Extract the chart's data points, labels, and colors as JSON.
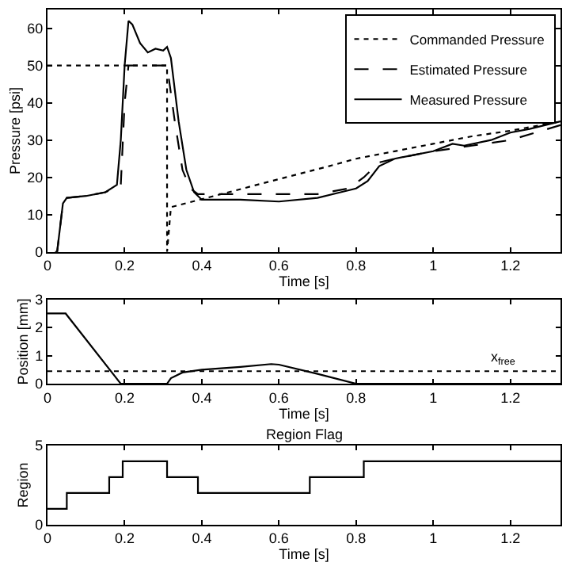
{
  "chart_data": [
    {
      "type": "line",
      "xlabel": "Time [s]",
      "ylabel": "Pressure [psi]",
      "xlim": [
        0,
        1.33
      ],
      "xticks": [
        0,
        0.2,
        0.4,
        0.6,
        0.8,
        1,
        1.2
      ],
      "ylim": [
        0,
        65
      ],
      "yticks": [
        0,
        10,
        20,
        30,
        40,
        50,
        60
      ],
      "grid": false,
      "legend": "top right",
      "marker": "none",
      "series": [
        {
          "name": "Commanded Pressure",
          "color": "#000000",
          "line_style": "dotted",
          "x": [
            0,
            0.31,
            0.31,
            0.32,
            0.73,
            0.8,
            0.9,
            1.0,
            1.1,
            1.2,
            1.33
          ],
          "values": [
            50,
            50,
            0,
            12,
            23,
            25,
            27,
            29,
            31,
            32.5,
            35
          ]
        },
        {
          "name": "Estimated Pressure",
          "color": "#000000",
          "line_style": "dashed",
          "x": [
            0.02,
            0.025,
            0.04,
            0.05,
            0.1,
            0.15,
            0.19,
            0.2,
            0.21,
            0.31,
            0.33,
            0.35,
            0.37,
            0.39,
            0.5,
            0.6,
            0.7,
            0.78,
            0.82,
            0.86,
            0.9,
            1.0,
            1.1,
            1.2,
            1.33
          ],
          "values": [
            0,
            0,
            13,
            14.5,
            15,
            16,
            18,
            40,
            50,
            50,
            35,
            22,
            17,
            15.5,
            15.5,
            15.5,
            15.5,
            17,
            20,
            24,
            25,
            27,
            28.5,
            30,
            34
          ]
        },
        {
          "name": "Measured Pressure",
          "color": "#000000",
          "line_style": "solid",
          "x": [
            0.02,
            0.025,
            0.04,
            0.05,
            0.1,
            0.15,
            0.18,
            0.19,
            0.2,
            0.21,
            0.22,
            0.24,
            0.26,
            0.28,
            0.3,
            0.31,
            0.32,
            0.34,
            0.36,
            0.38,
            0.4,
            0.5,
            0.6,
            0.7,
            0.76,
            0.8,
            0.83,
            0.86,
            0.9,
            1.0,
            1.05,
            1.08,
            1.15,
            1.2,
            1.25,
            1.33
          ],
          "values": [
            0,
            0,
            13,
            14.5,
            15,
            16,
            18,
            30,
            50,
            62,
            61,
            56,
            53.5,
            54.5,
            54,
            55,
            52,
            35,
            22,
            16,
            14,
            14,
            13.5,
            14.5,
            16,
            17,
            19,
            23,
            25,
            27,
            29,
            28.5,
            30,
            32,
            33,
            35
          ]
        }
      ]
    },
    {
      "type": "line",
      "xlabel": "Time [s]",
      "ylabel": "Position [mm]",
      "xlim": [
        0,
        1.33
      ],
      "xticks": [
        0,
        0.2,
        0.4,
        0.6,
        0.8,
        1,
        1.2
      ],
      "ylim": [
        0,
        3
      ],
      "yticks": [
        0,
        1,
        2,
        3
      ],
      "grid": false,
      "marker": "none",
      "line_style": "solid",
      "series": [
        {
          "color": "#000000",
          "x": [
            0,
            0.047,
            0.19,
            0.31,
            0.32,
            0.35,
            0.4,
            0.5,
            0.58,
            0.6,
            0.7,
            0.8,
            1.33
          ],
          "values": [
            2.5,
            2.5,
            0,
            0,
            0.2,
            0.4,
            0.5,
            0.6,
            0.7,
            0.68,
            0.35,
            0,
            0
          ]
        }
      ],
      "ref_lines": [
        {
          "axis": "y",
          "value": 0.45,
          "label": "x$_{free}$",
          "color": "#000000",
          "line_style": "dotted"
        }
      ]
    },
    {
      "type": "step",
      "title": "Region Flag",
      "xlabel": "Time [s]",
      "ylabel": "Region",
      "xlim": [
        0,
        1.33
      ],
      "xticks": [
        0,
        0.2,
        0.4,
        0.6,
        0.8,
        1,
        1.2
      ],
      "ylim": [
        0,
        5
      ],
      "yticks": [
        0,
        5
      ],
      "grid": false,
      "marker": "none",
      "line_style": "solid",
      "series": [
        {
          "color": "#000000",
          "x": [
            0,
            0.05,
            0.16,
            0.195,
            0.31,
            0.39,
            0.68,
            0.82,
            1.33
          ],
          "values": [
            1,
            2,
            3,
            4,
            3,
            2,
            3,
            4,
            4
          ]
        }
      ]
    }
  ]
}
